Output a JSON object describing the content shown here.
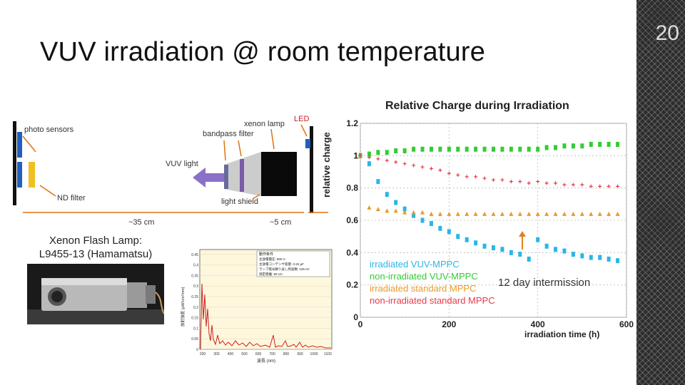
{
  "slide": {
    "title": "VUV irradiation @ room temperature",
    "number": "20"
  },
  "setup": {
    "photo_sensors": "photo sensors",
    "nd_filter": "ND filter",
    "xenon_lamp": "xenon lamp",
    "led": "LED",
    "bandpass_filter": "bandpass filter",
    "vuv_light": "VUV light",
    "light_shield": "light shield",
    "relative_charge": "relative charge",
    "dist1": "~35 cm",
    "dist2": "~5 cm"
  },
  "lamp": {
    "label_line1": "Xenon Flash Lamp:",
    "label_line2": "L9455-13 (Hamamatsu)"
  },
  "spectrum": {
    "xlabel": "波長 (nm)",
    "ylabel": "放射強度 (μW/cm²/nm)",
    "xticks": [
      "200",
      "300",
      "400",
      "500",
      "600",
      "700",
      "800",
      "900",
      "1000",
      "1100"
    ],
    "yticks": [
      "0",
      "0.05",
      "0.1",
      "0.15",
      "0.2",
      "0.25",
      "0.3",
      "0.35",
      "0.4",
      "0.45"
    ],
    "legend_title": "動作条件",
    "legend_lines": [
      "主放電電圧: 800 V",
      "主放電コンデンサ容量: 0.22 μF",
      "ランプ発光繰り返し周波数: 125 Hz",
      "測定距離: 50 cm"
    ]
  },
  "chart_data": {
    "type": "scatter",
    "title": "Relative Charge during Irradiation",
    "xlabel": "irradiation time (h)",
    "xlim": [
      0,
      600
    ],
    "ylim": [
      0,
      1.2
    ],
    "xticks": [
      "0",
      "200",
      "400",
      "600"
    ],
    "yticks": [
      "0",
      "0.2",
      "0.4",
      "0.6",
      "0.8",
      "1",
      "1.2"
    ],
    "annotation": "12 day intermission",
    "series": [
      {
        "name": "irradiated VUV-MPPC",
        "color": "#29b6e8",
        "x": [
          0,
          20,
          40,
          60,
          80,
          100,
          120,
          140,
          160,
          180,
          200,
          220,
          240,
          260,
          280,
          300,
          320,
          340,
          360,
          380,
          400,
          420,
          440,
          460,
          480,
          500,
          520,
          540,
          560,
          580
        ],
        "y": [
          1.0,
          0.95,
          0.84,
          0.76,
          0.71,
          0.67,
          0.63,
          0.6,
          0.58,
          0.55,
          0.53,
          0.5,
          0.48,
          0.46,
          0.44,
          0.43,
          0.42,
          0.4,
          0.39,
          0.36,
          0.48,
          0.44,
          0.42,
          0.41,
          0.39,
          0.38,
          0.37,
          0.37,
          0.36,
          0.35
        ]
      },
      {
        "name": "non-irradiated VUV-MPPC",
        "color": "#33cc33",
        "x": [
          0,
          20,
          40,
          60,
          80,
          100,
          120,
          140,
          160,
          180,
          200,
          220,
          240,
          260,
          280,
          300,
          320,
          340,
          360,
          380,
          400,
          420,
          440,
          460,
          480,
          500,
          520,
          540,
          560,
          580
        ],
        "y": [
          1.0,
          1.01,
          1.02,
          1.02,
          1.03,
          1.03,
          1.04,
          1.04,
          1.04,
          1.04,
          1.04,
          1.04,
          1.04,
          1.04,
          1.04,
          1.04,
          1.04,
          1.04,
          1.04,
          1.04,
          1.04,
          1.05,
          1.05,
          1.06,
          1.06,
          1.06,
          1.07,
          1.07,
          1.07,
          1.07
        ]
      },
      {
        "name": "irradiated standard MPPC",
        "color": "#e89a2a",
        "x": [
          0,
          20,
          40,
          60,
          80,
          100,
          120,
          140,
          160,
          180,
          200,
          220,
          240,
          260,
          280,
          300,
          320,
          340,
          360,
          380,
          400,
          420,
          440,
          460,
          480,
          500,
          520,
          540,
          560,
          580
        ],
        "y": [
          1.0,
          0.68,
          0.67,
          0.66,
          0.66,
          0.65,
          0.65,
          0.65,
          0.64,
          0.64,
          0.64,
          0.64,
          0.64,
          0.64,
          0.64,
          0.64,
          0.64,
          0.64,
          0.64,
          0.64,
          0.64,
          0.64,
          0.64,
          0.64,
          0.64,
          0.64,
          0.64,
          0.64,
          0.64,
          0.64
        ]
      },
      {
        "name": "non-irradiated standard MPPC",
        "color": "#e83a4a",
        "x": [
          0,
          20,
          40,
          60,
          80,
          100,
          120,
          140,
          160,
          180,
          200,
          220,
          240,
          260,
          280,
          300,
          320,
          340,
          360,
          380,
          400,
          420,
          440,
          460,
          480,
          500,
          520,
          540,
          560,
          580
        ],
        "y": [
          1.0,
          0.99,
          0.98,
          0.97,
          0.96,
          0.95,
          0.94,
          0.93,
          0.92,
          0.91,
          0.89,
          0.88,
          0.87,
          0.87,
          0.86,
          0.85,
          0.85,
          0.84,
          0.84,
          0.83,
          0.84,
          0.83,
          0.83,
          0.82,
          0.82,
          0.82,
          0.81,
          0.81,
          0.81,
          0.81
        ]
      }
    ]
  }
}
